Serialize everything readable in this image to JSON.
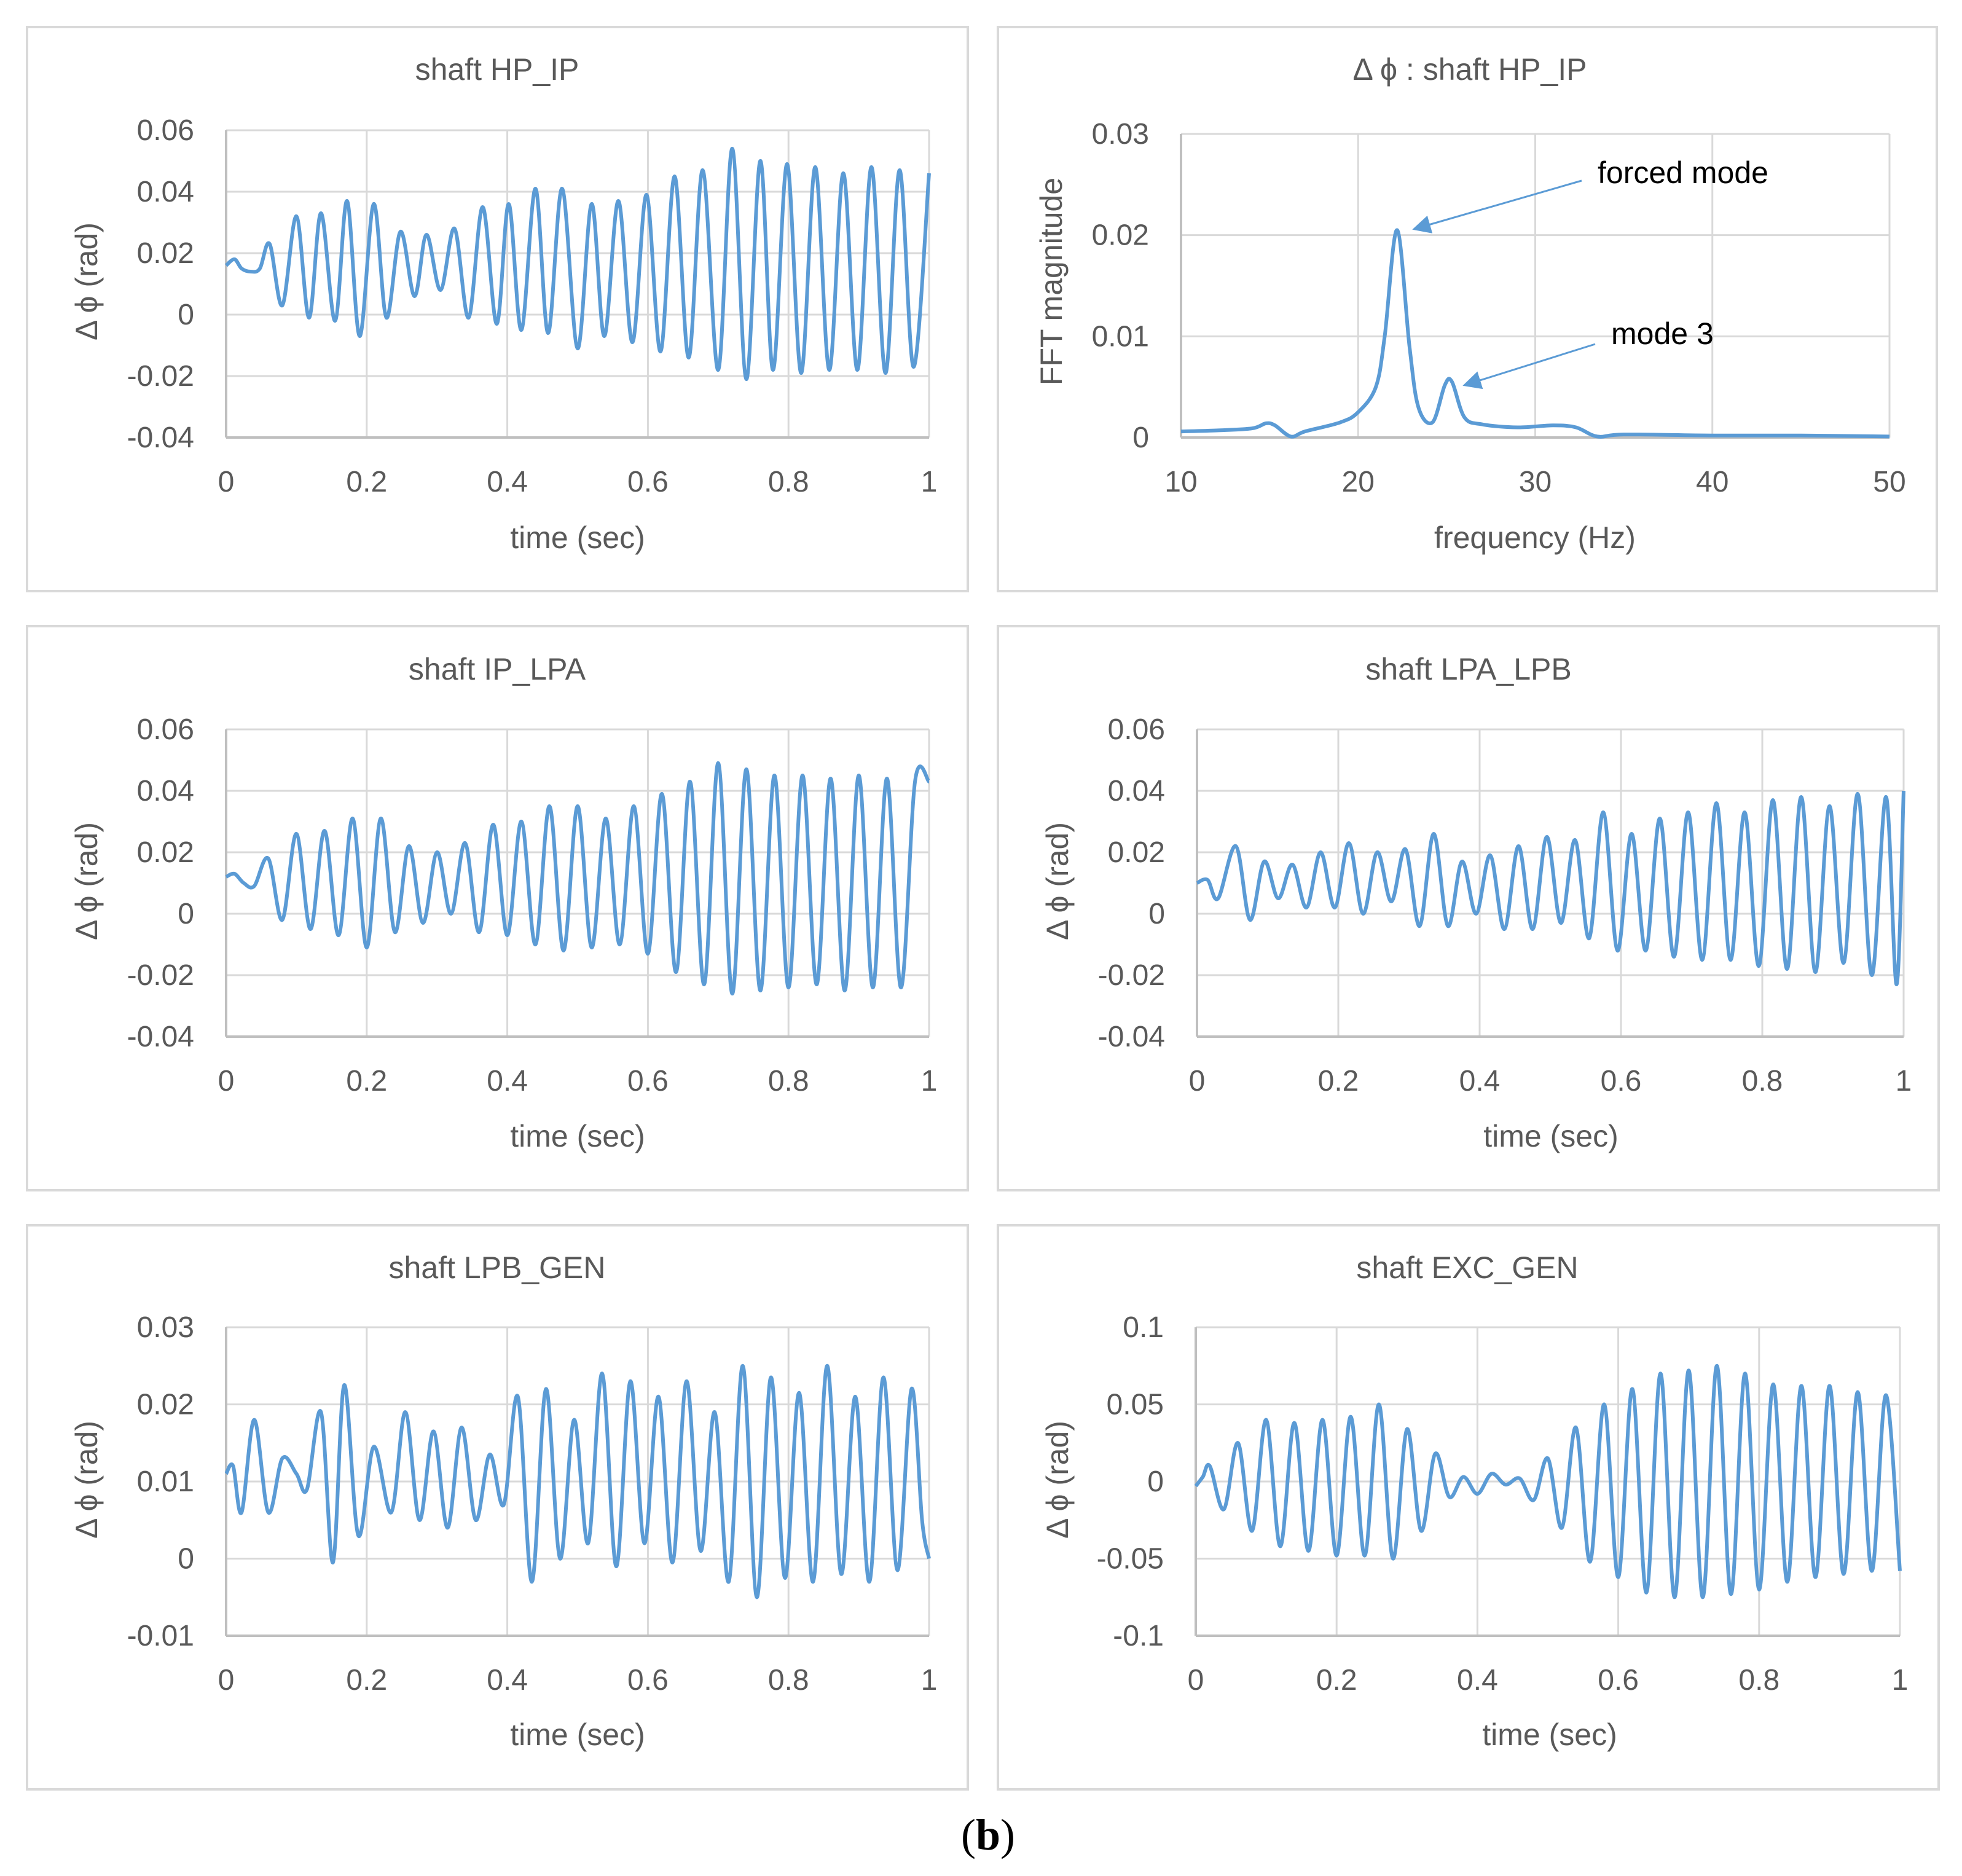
{
  "figure": {
    "caption_letter": "b",
    "caption_open": "(",
    "caption_close": ")"
  },
  "colors": {
    "series": "#5b9bd5",
    "grid": "#d9d9d9",
    "axis": "#bfbfbf",
    "text": "#595959",
    "frame": "#d9d9d9"
  },
  "chart_data": [
    {
      "type": "line",
      "title": "shaft HP_IP",
      "xlabel": "time (sec)",
      "ylabel": "Δ ϕ (rad)",
      "xlim": [
        0,
        1
      ],
      "ylim": [
        -0.04,
        0.06
      ],
      "xticks": [
        0,
        0.2,
        0.4,
        0.6,
        0.8,
        1
      ],
      "yticks": [
        -0.04,
        -0.02,
        0,
        0.02,
        0.04,
        0.06
      ],
      "xtick_labels": [
        "0",
        "0.2",
        "0.4",
        "0.6",
        "0.8",
        "1"
      ],
      "ytick_labels": [
        "-0.04",
        "-0.02",
        "0",
        "0.02",
        "0.04",
        "0.06"
      ],
      "grid": true,
      "series": [
        {
          "name": "shaft HP_IP",
          "x": [
            0,
            0.012,
            0.022,
            0.035,
            0.048,
            0.062,
            0.08,
            0.1,
            0.118,
            0.135,
            0.155,
            0.172,
            0.19,
            0.21,
            0.228,
            0.248,
            0.268,
            0.285,
            0.305,
            0.325,
            0.345,
            0.365,
            0.385,
            0.402,
            0.42,
            0.44,
            0.458,
            0.478,
            0.5,
            0.52,
            0.538,
            0.558,
            0.578,
            0.598,
            0.618,
            0.638,
            0.658,
            0.678,
            0.7,
            0.72,
            0.74,
            0.76,
            0.778,
            0.798,
            0.818,
            0.838,
            0.858,
            0.878,
            0.898,
            0.918,
            0.938,
            0.958,
            0.978,
            1
          ],
          "y": [
            0.016,
            0.018,
            0.015,
            0.014,
            0.015,
            0.023,
            0.003,
            0.032,
            -0.001,
            0.033,
            -0.002,
            0.037,
            -0.007,
            0.036,
            -0.001,
            0.027,
            0.006,
            0.026,
            0.008,
            0.028,
            -0.001,
            0.035,
            -0.003,
            0.036,
            -0.005,
            0.041,
            -0.006,
            0.041,
            -0.011,
            0.036,
            -0.007,
            0.037,
            -0.009,
            0.039,
            -0.012,
            0.045,
            -0.014,
            0.047,
            -0.018,
            0.054,
            -0.021,
            0.05,
            -0.018,
            0.049,
            -0.019,
            0.048,
            -0.018,
            0.046,
            -0.018,
            0.048,
            -0.019,
            0.047,
            -0.017,
            0.046
          ]
        }
      ]
    },
    {
      "type": "line",
      "title": "Δ ϕ : shaft HP_IP",
      "xlabel": "frequency (Hz)",
      "ylabel": "FFT magnitude",
      "xlim": [
        10,
        50
      ],
      "ylim": [
        0,
        0.03
      ],
      "xticks": [
        10,
        20,
        30,
        40,
        50
      ],
      "yticks": [
        0,
        0.01,
        0.02,
        0.03
      ],
      "xtick_labels": [
        "10",
        "20",
        "30",
        "40",
        "50"
      ],
      "ytick_labels": [
        "0",
        "0.01",
        "0.02",
        "0.03"
      ],
      "grid": true,
      "series": [
        {
          "name": "FFT",
          "x": [
            10,
            12,
            14,
            14.8,
            15.3,
            16.2,
            17,
            19,
            20,
            21,
            21.5,
            22.2,
            22.9,
            23.4,
            24.2,
            24.9,
            25.3,
            26,
            27,
            29,
            31,
            32.3,
            33.5,
            35,
            40,
            45,
            50
          ],
          "y": [
            0.0006,
            0.0007,
            0.0009,
            0.0014,
            0.0012,
            0.0001,
            0.0006,
            0.0015,
            0.0025,
            0.005,
            0.01,
            0.0205,
            0.009,
            0.003,
            0.0015,
            0.0052,
            0.0055,
            0.002,
            0.0013,
            0.001,
            0.0012,
            0.001,
            0.0001,
            0.0003,
            0.0002,
            0.0002,
            0.0001
          ]
        }
      ],
      "annotations": [
        {
          "text": "forced mode",
          "x": 22.2,
          "y": 0.0205
        },
        {
          "text": "mode 3",
          "x": 25.3,
          "y": 0.0055
        }
      ]
    },
    {
      "type": "line",
      "title": "shaft IP_LPA",
      "xlabel": "time (sec)",
      "ylabel": "Δ ϕ (rad)",
      "xlim": [
        0,
        1
      ],
      "ylim": [
        -0.04,
        0.06
      ],
      "xticks": [
        0,
        0.2,
        0.4,
        0.6,
        0.8,
        1
      ],
      "yticks": [
        -0.04,
        -0.02,
        0,
        0.02,
        0.04,
        0.06
      ],
      "xtick_labels": [
        "0",
        "0.2",
        "0.4",
        "0.6",
        "0.8",
        "1"
      ],
      "ytick_labels": [
        "-0.04",
        "-0.02",
        "0",
        "0.02",
        "0.04",
        "0.06"
      ],
      "grid": true,
      "series": [
        {
          "name": "shaft IP_LPA",
          "x": [
            0,
            0.012,
            0.025,
            0.04,
            0.06,
            0.08,
            0.1,
            0.12,
            0.14,
            0.16,
            0.18,
            0.2,
            0.22,
            0.24,
            0.26,
            0.28,
            0.3,
            0.32,
            0.34,
            0.36,
            0.38,
            0.4,
            0.42,
            0.44,
            0.46,
            0.48,
            0.5,
            0.52,
            0.54,
            0.56,
            0.58,
            0.6,
            0.62,
            0.64,
            0.66,
            0.68,
            0.7,
            0.72,
            0.74,
            0.76,
            0.78,
            0.8,
            0.82,
            0.84,
            0.86,
            0.88,
            0.9,
            0.92,
            0.94,
            0.96,
            0.98,
            1
          ],
          "y": [
            0.012,
            0.013,
            0.01,
            0.009,
            0.018,
            -0.002,
            0.026,
            -0.005,
            0.027,
            -0.007,
            0.031,
            -0.011,
            0.031,
            -0.006,
            0.022,
            -0.003,
            0.02,
            0.0,
            0.023,
            -0.006,
            0.029,
            -0.007,
            0.03,
            -0.01,
            0.035,
            -0.012,
            0.035,
            -0.011,
            0.031,
            -0.01,
            0.035,
            -0.013,
            0.039,
            -0.019,
            0.043,
            -0.023,
            0.049,
            -0.026,
            0.047,
            -0.025,
            0.045,
            -0.024,
            0.045,
            -0.023,
            0.044,
            -0.025,
            0.045,
            -0.024,
            0.044,
            -0.024,
            0.043,
            0.043
          ]
        }
      ]
    },
    {
      "type": "line",
      "title": "shaft LPA_LPB",
      "xlabel": "time (sec)",
      "ylabel": "Δ ϕ (rad)",
      "xlim": [
        0,
        1
      ],
      "ylim": [
        -0.04,
        0.06
      ],
      "xticks": [
        0,
        0.2,
        0.4,
        0.6,
        0.8,
        1
      ],
      "yticks": [
        -0.04,
        -0.02,
        0,
        0.02,
        0.04,
        0.06
      ],
      "xtick_labels": [
        "0",
        "0.2",
        "0.4",
        "0.6",
        "0.8",
        "1"
      ],
      "ytick_labels": [
        "-0.04",
        "-0.02",
        "0",
        "0.02",
        "0.04",
        "0.06"
      ],
      "grid": true,
      "series": [
        {
          "name": "shaft LPA_LPB",
          "x": [
            0,
            0.015,
            0.03,
            0.055,
            0.075,
            0.095,
            0.115,
            0.135,
            0.155,
            0.175,
            0.195,
            0.215,
            0.235,
            0.255,
            0.275,
            0.295,
            0.315,
            0.335,
            0.355,
            0.375,
            0.395,
            0.415,
            0.435,
            0.455,
            0.475,
            0.495,
            0.515,
            0.535,
            0.555,
            0.575,
            0.595,
            0.615,
            0.635,
            0.655,
            0.675,
            0.695,
            0.715,
            0.735,
            0.755,
            0.775,
            0.795,
            0.815,
            0.835,
            0.855,
            0.875,
            0.895,
            0.915,
            0.935,
            0.955,
            0.975,
            0.99,
            1
          ],
          "y": [
            0.01,
            0.011,
            0.005,
            0.022,
            -0.002,
            0.017,
            0.005,
            0.016,
            0.002,
            0.02,
            0.002,
            0.023,
            0.0,
            0.02,
            0.004,
            0.021,
            -0.004,
            0.026,
            -0.004,
            0.017,
            0.0,
            0.019,
            -0.005,
            0.022,
            -0.005,
            0.025,
            -0.003,
            0.024,
            -0.008,
            0.033,
            -0.012,
            0.026,
            -0.012,
            0.031,
            -0.014,
            0.033,
            -0.015,
            0.036,
            -0.015,
            0.033,
            -0.017,
            0.037,
            -0.018,
            0.038,
            -0.019,
            0.035,
            -0.016,
            0.039,
            -0.02,
            0.038,
            -0.023,
            0.04
          ]
        }
      ]
    },
    {
      "type": "line",
      "title": "shaft LPB_GEN",
      "xlabel": "time (sec)",
      "ylabel": "Δ ϕ (rad)",
      "xlim": [
        0,
        1
      ],
      "ylim": [
        -0.01,
        0.03
      ],
      "xticks": [
        0,
        0.2,
        0.4,
        0.6,
        0.8,
        1
      ],
      "yticks": [
        -0.01,
        0,
        0.01,
        0.02,
        0.03
      ],
      "xtick_labels": [
        "0",
        "0.2",
        "0.4",
        "0.6",
        "0.8",
        "1"
      ],
      "ytick_labels": [
        "-0.01",
        "0",
        "0.01",
        "0.02",
        "0.03"
      ],
      "grid": true,
      "series": [
        {
          "name": "shaft LPB_GEN",
          "x": [
            0,
            0.01,
            0.022,
            0.04,
            0.06,
            0.08,
            0.1,
            0.115,
            0.135,
            0.152,
            0.168,
            0.188,
            0.21,
            0.235,
            0.255,
            0.275,
            0.295,
            0.315,
            0.335,
            0.355,
            0.375,
            0.395,
            0.415,
            0.435,
            0.455,
            0.475,
            0.495,
            0.515,
            0.535,
            0.555,
            0.575,
            0.595,
            0.615,
            0.635,
            0.655,
            0.675,
            0.695,
            0.715,
            0.735,
            0.755,
            0.775,
            0.795,
            0.815,
            0.835,
            0.855,
            0.875,
            0.895,
            0.915,
            0.935,
            0.955,
            0.975,
            0.99,
            1
          ],
          "y": [
            0.011,
            0.012,
            0.006,
            0.018,
            0.006,
            0.013,
            0.011,
            0.009,
            0.019,
            -0.0005,
            0.0225,
            0.003,
            0.0145,
            0.006,
            0.019,
            0.005,
            0.0165,
            0.004,
            0.017,
            0.005,
            0.0135,
            0.007,
            0.021,
            -0.003,
            0.022,
            0.0,
            0.018,
            0.002,
            0.024,
            -0.001,
            0.023,
            0.002,
            0.021,
            -0.0005,
            0.023,
            0.001,
            0.019,
            -0.003,
            0.025,
            -0.005,
            0.0235,
            -0.0025,
            0.0215,
            -0.003,
            0.025,
            -0.002,
            0.021,
            -0.003,
            0.0235,
            -0.0015,
            0.022,
            0.005,
            0.0
          ]
        }
      ]
    },
    {
      "type": "line",
      "title": "shaft EXC_GEN",
      "xlabel": "time (sec)",
      "ylabel": "Δ ϕ (rad)",
      "xlim": [
        0,
        1
      ],
      "ylim": [
        -0.1,
        0.1
      ],
      "xticks": [
        0,
        0.2,
        0.4,
        0.6,
        0.8,
        1
      ],
      "yticks": [
        -0.1,
        -0.05,
        0,
        0.05,
        0.1
      ],
      "xtick_labels": [
        "0",
        "0.2",
        "0.4",
        "0.6",
        "0.8",
        "1"
      ],
      "ytick_labels": [
        "-0.1",
        "-0.05",
        "0",
        "0.05",
        "0.1"
      ],
      "grid": true,
      "series": [
        {
          "name": "shaft EXC_GEN",
          "x": [
            0,
            0.01,
            0.02,
            0.04,
            0.06,
            0.08,
            0.1,
            0.12,
            0.14,
            0.16,
            0.18,
            0.2,
            0.22,
            0.24,
            0.26,
            0.28,
            0.3,
            0.32,
            0.34,
            0.36,
            0.38,
            0.4,
            0.42,
            0.44,
            0.46,
            0.48,
            0.5,
            0.52,
            0.54,
            0.56,
            0.58,
            0.6,
            0.62,
            0.64,
            0.66,
            0.68,
            0.7,
            0.72,
            0.74,
            0.76,
            0.78,
            0.8,
            0.82,
            0.84,
            0.86,
            0.88,
            0.9,
            0.92,
            0.94,
            0.96,
            0.98,
            1
          ],
          "y": [
            -0.003,
            0.003,
            0.01,
            -0.018,
            0.025,
            -0.032,
            0.04,
            -0.042,
            0.038,
            -0.045,
            0.04,
            -0.048,
            0.042,
            -0.048,
            0.05,
            -0.05,
            0.034,
            -0.032,
            0.018,
            -0.01,
            0.003,
            -0.008,
            0.005,
            -0.002,
            0.002,
            -0.012,
            0.015,
            -0.03,
            0.035,
            -0.052,
            0.05,
            -0.062,
            0.06,
            -0.072,
            0.07,
            -0.075,
            0.072,
            -0.075,
            0.075,
            -0.073,
            0.07,
            -0.07,
            0.063,
            -0.065,
            0.062,
            -0.062,
            0.062,
            -0.06,
            0.058,
            -0.058,
            0.056,
            -0.058
          ]
        }
      ]
    }
  ]
}
